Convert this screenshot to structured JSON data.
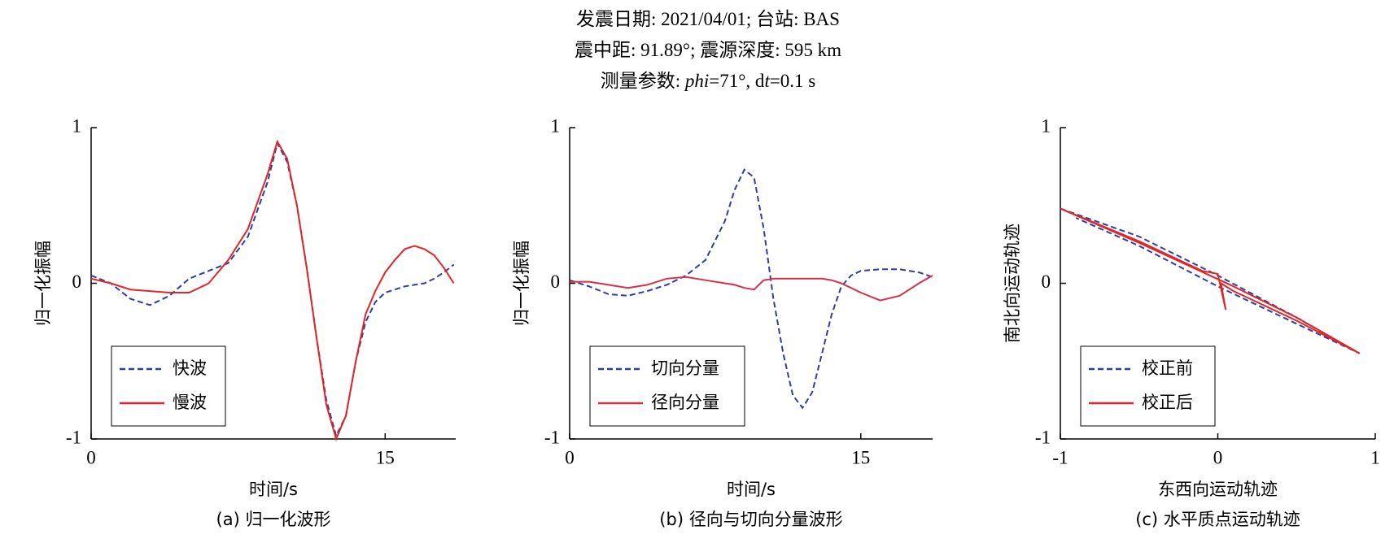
{
  "header": {
    "lines": [
      [
        {
          "text": "发震日期: 2021/04/01; 台站: BAS"
        }
      ],
      [
        {
          "text": "震中距: 91.89°; 震源深度: 595 km"
        }
      ],
      [
        {
          "text": "测量参数: "
        },
        {
          "text": "phi",
          "italic": true
        },
        {
          "text": "=71°, d"
        },
        {
          "text": "t",
          "italic": true
        },
        {
          "text": "=0.1 s"
        }
      ]
    ]
  },
  "chart_data": [
    {
      "type": "line",
      "caption": "(a) 归一化波形",
      "x_label": "时间/s",
      "y_label": "归一化振幅",
      "x": [
        0,
        1,
        2,
        3,
        4,
        5,
        6,
        7,
        8,
        9,
        9.5,
        10,
        10.5,
        11,
        11.5,
        12,
        12.5,
        13,
        13.5,
        14,
        14.5,
        15,
        15.5,
        16,
        16.5,
        17,
        17.5,
        18,
        18.5
      ],
      "xlim": [
        0,
        18.6
      ],
      "xticks": [
        0,
        15
      ],
      "ylim": [
        -1,
        1
      ],
      "yticks": [
        -1,
        0,
        1
      ],
      "legend": "lower left",
      "series": [
        {
          "name": "快波",
          "color": "#2f3d9e",
          "dash": true,
          "values": [
            0.05,
            0.0,
            -0.1,
            -0.14,
            -0.08,
            0.03,
            0.08,
            0.13,
            0.3,
            0.65,
            0.9,
            0.78,
            0.5,
            0.1,
            -0.35,
            -0.75,
            -0.98,
            -0.85,
            -0.5,
            -0.25,
            -0.12,
            -0.06,
            -0.04,
            -0.02,
            -0.01,
            0.0,
            0.03,
            0.07,
            0.12
          ]
        },
        {
          "name": "慢波",
          "color": "#e0262a",
          "dash": false,
          "values": [
            0.03,
            0.0,
            -0.04,
            -0.05,
            -0.06,
            -0.06,
            0.0,
            0.15,
            0.35,
            0.7,
            0.91,
            0.8,
            0.5,
            0.1,
            -0.35,
            -0.78,
            -1.0,
            -0.85,
            -0.5,
            -0.2,
            -0.05,
            0.07,
            0.15,
            0.22,
            0.24,
            0.22,
            0.18,
            0.1,
            0.0
          ]
        }
      ]
    },
    {
      "type": "line",
      "caption": "(b) 径向与切向分量波形",
      "x_label": "时间/s",
      "y_label": "归一化振幅",
      "x": [
        0,
        1,
        2,
        3,
        4,
        5,
        6,
        7,
        8,
        8.5,
        9,
        9.5,
        10,
        10.5,
        11,
        11.5,
        12,
        12.5,
        13,
        13.5,
        14,
        14.5,
        15,
        16,
        17,
        18,
        18.7
      ],
      "xlim": [
        0,
        18.7
      ],
      "xticks": [
        0,
        15
      ],
      "ylim": [
        -1,
        1
      ],
      "yticks": [
        -1,
        0,
        1
      ],
      "legend": "lower left",
      "series": [
        {
          "name": "切向分量",
          "color": "#2f3d9e",
          "dash": true,
          "values": [
            0.02,
            -0.02,
            -0.07,
            -0.08,
            -0.05,
            -0.01,
            0.05,
            0.15,
            0.4,
            0.6,
            0.73,
            0.68,
            0.35,
            -0.1,
            -0.45,
            -0.72,
            -0.8,
            -0.7,
            -0.45,
            -0.2,
            -0.02,
            0.05,
            0.08,
            0.09,
            0.09,
            0.07,
            0.04
          ]
        },
        {
          "name": "径向分量",
          "color": "#d9304a",
          "dash": false,
          "values": [
            0.01,
            0.01,
            -0.01,
            -0.03,
            -0.01,
            0.03,
            0.04,
            0.02,
            0.0,
            -0.01,
            -0.03,
            -0.04,
            0.02,
            0.03,
            0.03,
            0.03,
            0.03,
            0.03,
            0.03,
            0.02,
            0.0,
            -0.03,
            -0.06,
            -0.11,
            -0.08,
            0.0,
            0.05
          ]
        }
      ]
    },
    {
      "type": "trajectory",
      "caption": "(c) 水平质点运动轨迹",
      "x_label": "东西向运动轨迹",
      "y_label": "南北向运动轨迹",
      "xlim": [
        -1,
        1
      ],
      "xticks": [
        -1,
        0,
        1
      ],
      "ylim": [
        -1,
        1
      ],
      "yticks": [
        -1,
        0,
        1
      ],
      "legend": "lower left",
      "series": [
        {
          "name": "校正前",
          "color": "#2f3d9e",
          "dash": true,
          "x": [
            -1,
            -0.5,
            0,
            0.5,
            0.9,
            0.5,
            0,
            -0.5,
            -0.9
          ],
          "values": [
            0.48,
            0.3,
            0.05,
            -0.22,
            -0.45,
            -0.26,
            -0.02,
            0.24,
            0.42
          ]
        },
        {
          "name": "校正后",
          "color": "#e0262a",
          "dash": false,
          "x": [
            -1,
            -0.5,
            -0.1,
            0.0,
            0.05,
            0.02,
            0.1,
            0.5,
            0.9,
            0.5,
            0.1,
            -0.5,
            -1
          ],
          "values": [
            0.48,
            0.27,
            0.08,
            0.06,
            -0.17,
            0.0,
            -0.05,
            -0.24,
            -0.45,
            -0.22,
            -0.02,
            0.26,
            0.48
          ]
        }
      ]
    }
  ]
}
